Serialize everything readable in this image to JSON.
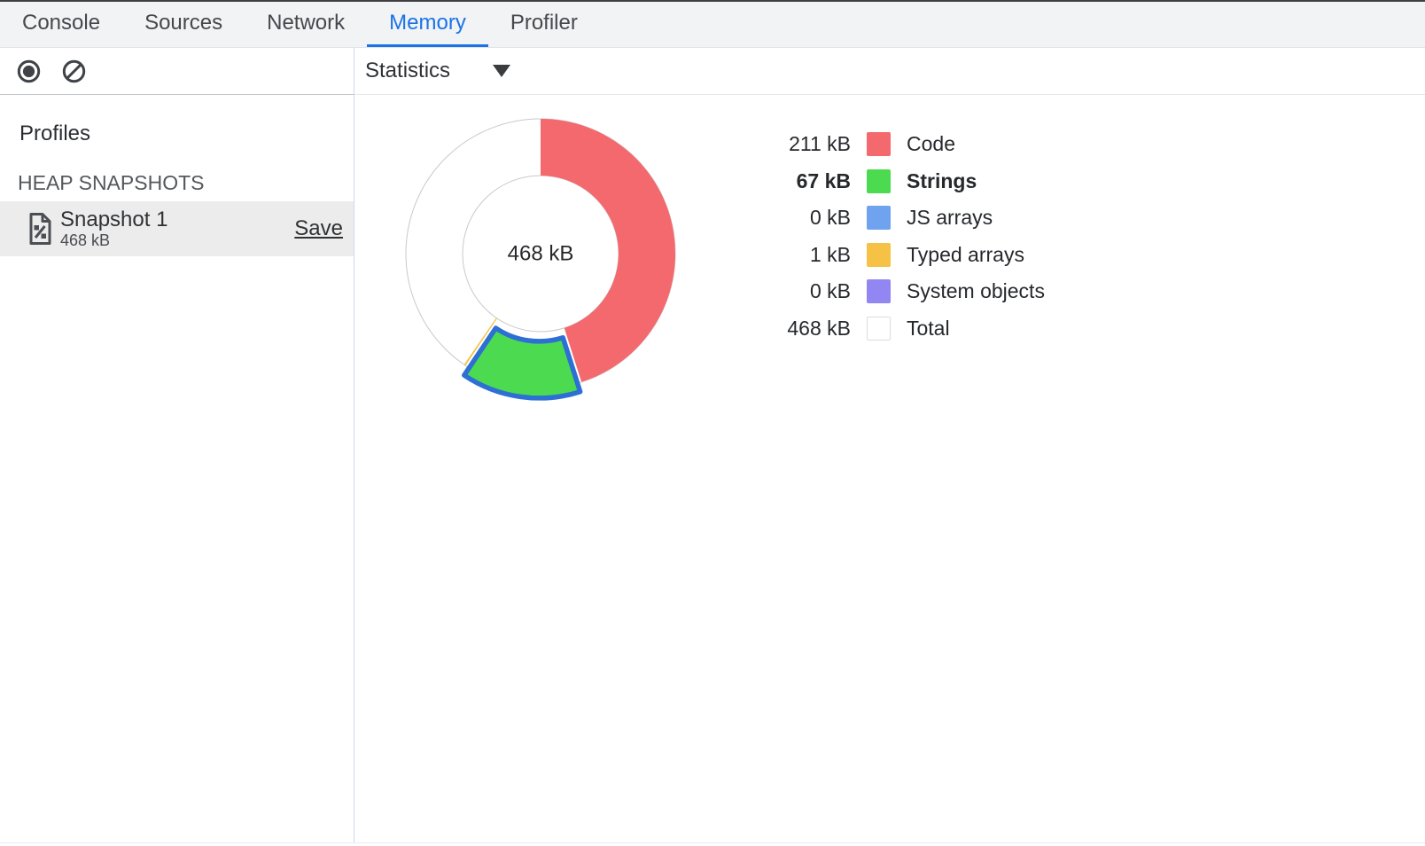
{
  "tabs": {
    "items": [
      {
        "label": "Console",
        "active": false
      },
      {
        "label": "Sources",
        "active": false
      },
      {
        "label": "Network",
        "active": false
      },
      {
        "label": "Memory",
        "active": true
      },
      {
        "label": "Profiler",
        "active": false
      }
    ]
  },
  "toolbar": {
    "record_icon": "record-icon",
    "clear_icon": "block-icon",
    "view_selector": {
      "value": "Statistics",
      "dropdown_icon": "triangle-down-icon"
    }
  },
  "sidebar": {
    "profiles_heading": "Profiles",
    "section_heading": "HEAP SNAPSHOTS",
    "snapshot": {
      "icon": "heap-snapshot-document-icon",
      "title": "Snapshot 1",
      "size_label": "468 kB",
      "save_label": "Save",
      "selected": true
    }
  },
  "colors": {
    "accent": "#1A73E8",
    "selection_stroke": "#2D6FD4",
    "ring_outline": "#C9C9C9"
  },
  "chart_data": {
    "type": "pie",
    "style": "donut",
    "center_label": "468 kB",
    "unit": "kB",
    "total_kb": 468,
    "legend_position": "right",
    "segments": [
      {
        "label": "Code",
        "value_kb": 211,
        "value_label": "211 kB",
        "color": "#F4696E",
        "selected": false,
        "is_total": false
      },
      {
        "label": "Strings",
        "value_kb": 67,
        "value_label": "67 kB",
        "color": "#4CDB50",
        "selected": true,
        "is_total": false
      },
      {
        "label": "JS arrays",
        "value_kb": 0,
        "value_label": "0 kB",
        "color": "#6FA3EF",
        "selected": false,
        "is_total": false
      },
      {
        "label": "Typed arrays",
        "value_kb": 1,
        "value_label": "1 kB",
        "color": "#F5C246",
        "selected": false,
        "is_total": false
      },
      {
        "label": "System objects",
        "value_kb": 0,
        "value_label": "0 kB",
        "color": "#9186F2",
        "selected": false,
        "is_total": false
      },
      {
        "label": "Total",
        "value_kb": 468,
        "value_label": "468 kB",
        "color": "#FFFFFF",
        "selected": false,
        "is_total": true
      }
    ]
  }
}
